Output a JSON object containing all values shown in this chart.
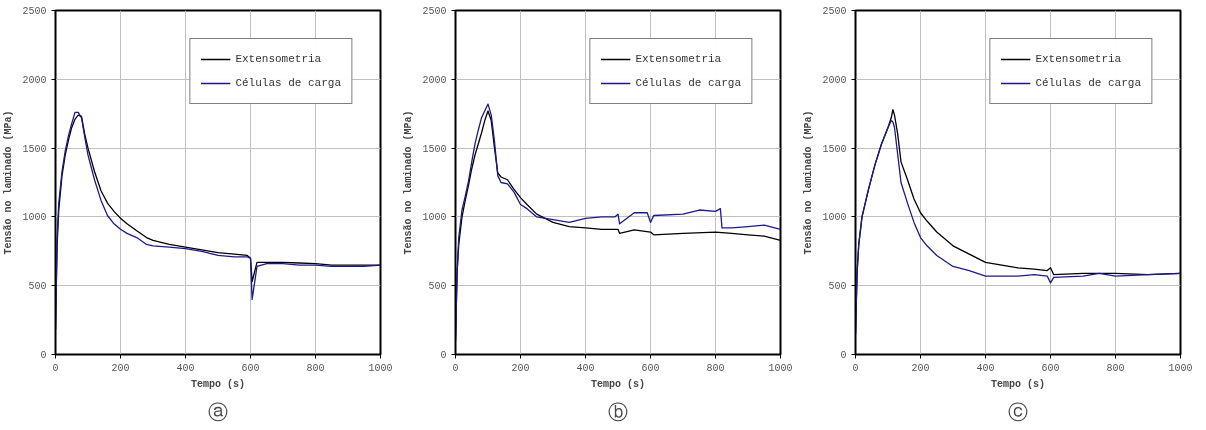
{
  "chart_data": [
    {
      "type": "line",
      "xlabel": "Tempo (s)",
      "ylabel": "Tensão no laminado (MPa)",
      "annotations": [
        "ⓐ"
      ],
      "xlim": [
        0,
        1000
      ],
      "ylim": [
        0,
        2500
      ],
      "xticks": [
        0,
        200,
        400,
        600,
        800,
        1000
      ],
      "yticks": [
        0,
        500,
        1000,
        1500,
        2000,
        2500
      ],
      "grid": true,
      "legend": "top right",
      "line_style": "solid",
      "series": [
        {
          "name": "Extensometria",
          "color": "#000000",
          "x": [
            0,
            5,
            10,
            20,
            30,
            40,
            50,
            60,
            70,
            80,
            90,
            100,
            120,
            140,
            160,
            180,
            200,
            220,
            250,
            280,
            300,
            350,
            400,
            450,
            500,
            550,
            590,
            600,
            605,
            620,
            650,
            700,
            750,
            800,
            850,
            900,
            950,
            1000
          ],
          "values": [
            180,
            800,
            1050,
            1300,
            1450,
            1560,
            1650,
            1710,
            1740,
            1730,
            1600,
            1500,
            1330,
            1190,
            1100,
            1040,
            990,
            950,
            900,
            850,
            830,
            800,
            780,
            760,
            740,
            730,
            720,
            700,
            530,
            670,
            670,
            670,
            665,
            660,
            650,
            650,
            650,
            650
          ]
        },
        {
          "name": "Células de carga",
          "color": "#1a1a8c",
          "x": [
            0,
            5,
            10,
            20,
            30,
            40,
            50,
            60,
            70,
            80,
            90,
            100,
            120,
            140,
            160,
            180,
            200,
            220,
            250,
            280,
            300,
            350,
            400,
            450,
            500,
            550,
            590,
            600,
            605,
            620,
            650,
            700,
            750,
            800,
            850,
            900,
            950,
            1000
          ],
          "values": [
            180,
            850,
            1100,
            1330,
            1480,
            1590,
            1680,
            1760,
            1760,
            1720,
            1580,
            1450,
            1270,
            1120,
            1010,
            950,
            910,
            880,
            850,
            800,
            790,
            780,
            770,
            750,
            720,
            710,
            710,
            700,
            400,
            640,
            660,
            660,
            650,
            650,
            640,
            640,
            640,
            650
          ]
        }
      ]
    },
    {
      "type": "line",
      "xlabel": "Tempo (s)",
      "ylabel": "Tensão no laminado (MPa)",
      "annotations": [
        "ⓑ"
      ],
      "xlim": [
        0,
        1000
      ],
      "ylim": [
        0,
        2500
      ],
      "xticks": [
        0,
        200,
        400,
        600,
        800,
        1000
      ],
      "yticks": [
        0,
        500,
        1000,
        1500,
        2000,
        2500
      ],
      "grid": true,
      "legend": "top right",
      "line_style": "solid",
      "series": [
        {
          "name": "Extensometria",
          "color": "#000000",
          "x": [
            0,
            5,
            10,
            20,
            30,
            40,
            50,
            60,
            70,
            80,
            90,
            100,
            110,
            120,
            130,
            140,
            160,
            180,
            200,
            220,
            250,
            300,
            350,
            400,
            450,
            500,
            505,
            550,
            600,
            610,
            700,
            800,
            850,
            900,
            950,
            1000
          ],
          "values": [
            100,
            600,
            800,
            1000,
            1120,
            1230,
            1350,
            1450,
            1530,
            1610,
            1700,
            1770,
            1700,
            1500,
            1320,
            1290,
            1270,
            1200,
            1140,
            1090,
            1020,
            960,
            930,
            920,
            910,
            910,
            880,
            905,
            890,
            870,
            880,
            890,
            880,
            870,
            860,
            830
          ]
        },
        {
          "name": "Células de carga",
          "color": "#1a1a8c",
          "x": [
            0,
            5,
            10,
            20,
            30,
            40,
            50,
            60,
            70,
            80,
            90,
            100,
            110,
            120,
            130,
            140,
            160,
            180,
            200,
            220,
            250,
            300,
            350,
            400,
            450,
            490,
            500,
            505,
            550,
            590,
            600,
            610,
            700,
            750,
            800,
            815,
            820,
            850,
            900,
            950,
            1000
          ],
          "values": [
            100,
            600,
            850,
            1050,
            1150,
            1260,
            1400,
            1530,
            1630,
            1720,
            1770,
            1820,
            1740,
            1550,
            1300,
            1250,
            1240,
            1180,
            1090,
            1060,
            1000,
            980,
            960,
            990,
            1000,
            1000,
            1020,
            950,
            1030,
            1030,
            960,
            1010,
            1020,
            1050,
            1040,
            1060,
            920,
            920,
            930,
            940,
            910
          ]
        }
      ]
    },
    {
      "type": "line",
      "xlabel": "Tempo (s)",
      "ylabel": "Tensão no laminado (MPa)",
      "annotations": [
        "ⓒ"
      ],
      "xlim": [
        0,
        1000
      ],
      "ylim": [
        0,
        2500
      ],
      "xticks": [
        0,
        200,
        400,
        600,
        800,
        1000
      ],
      "yticks": [
        0,
        500,
        1000,
        1500,
        2000,
        2500
      ],
      "grid": true,
      "legend": "top right",
      "line_style": "solid",
      "series": [
        {
          "name": "Extensometria",
          "color": "#000000",
          "x": [
            0,
            5,
            10,
            20,
            30,
            40,
            60,
            80,
            100,
            110,
            115,
            120,
            130,
            140,
            160,
            180,
            200,
            220,
            250,
            300,
            350,
            400,
            450,
            500,
            550,
            590,
            600,
            610,
            700,
            800,
            900,
            1000
          ],
          "values": [
            150,
            600,
            800,
            1000,
            1100,
            1200,
            1380,
            1530,
            1650,
            1720,
            1780,
            1740,
            1600,
            1400,
            1270,
            1130,
            1030,
            970,
            890,
            790,
            730,
            670,
            650,
            630,
            620,
            610,
            630,
            580,
            590,
            590,
            580,
            590
          ]
        },
        {
          "name": "Células de carga",
          "color": "#1a1a8c",
          "x": [
            0,
            5,
            10,
            20,
            30,
            40,
            60,
            80,
            100,
            110,
            115,
            120,
            130,
            140,
            160,
            180,
            200,
            220,
            250,
            300,
            350,
            400,
            450,
            500,
            550,
            590,
            600,
            610,
            700,
            750,
            800,
            900,
            1000
          ],
          "values": [
            150,
            600,
            800,
            1000,
            1100,
            1200,
            1380,
            1530,
            1650,
            1700,
            1690,
            1650,
            1450,
            1250,
            1100,
            960,
            850,
            790,
            720,
            640,
            610,
            570,
            570,
            570,
            580,
            570,
            520,
            560,
            570,
            590,
            570,
            580,
            590
          ]
        }
      ]
    }
  ]
}
